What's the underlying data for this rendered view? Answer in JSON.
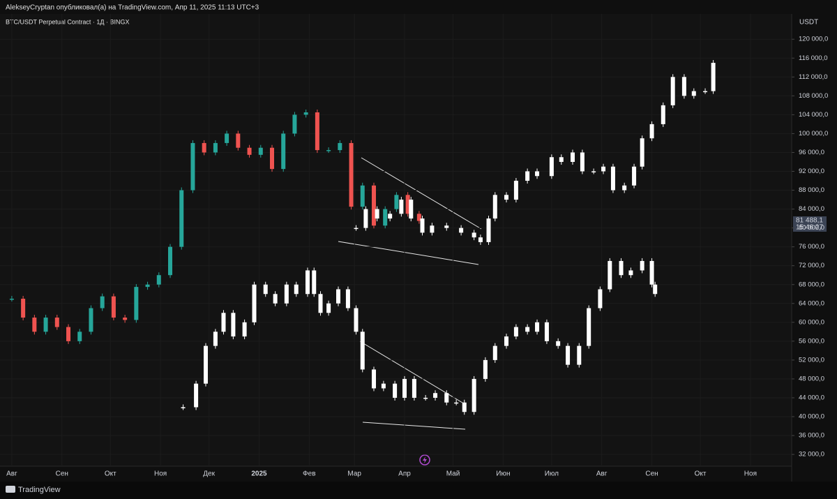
{
  "header": {
    "published": "AlekseyCryptan опубликовал(а) на TradingView.com, Апр 11, 2025 11:13 UTC+3",
    "symbol": "BTC/USDT Perpetual Contract · 1Д · BINGX",
    "currency": "USDT"
  },
  "price_label": {
    "price": "81 488,1",
    "countdown": "15:46:27"
  },
  "footer": {
    "brand": "TradingView"
  },
  "chart_data": {
    "type": "candlestick",
    "xlim": [
      -7.3,
      482.5
    ],
    "xticks": [
      {
        "value": 0,
        "label": "Авг"
      },
      {
        "value": 31,
        "label": "Сен"
      },
      {
        "value": 61,
        "label": "Окт"
      },
      {
        "value": 92,
        "label": "Ноя"
      },
      {
        "value": 122,
        "label": "Дек"
      },
      {
        "value": 153,
        "label": "2025"
      },
      {
        "value": 184,
        "label": "Фев"
      },
      {
        "value": 212,
        "label": "Мар"
      },
      {
        "value": 243,
        "label": "Апр"
      },
      {
        "value": 273,
        "label": "Май"
      },
      {
        "value": 304,
        "label": "Июн"
      },
      {
        "value": 334,
        "label": "Июл"
      },
      {
        "value": 365,
        "label": "Авг"
      },
      {
        "value": 396,
        "label": "Сен"
      },
      {
        "value": 426,
        "label": "Окт"
      },
      {
        "value": 457,
        "label": "Ноя"
      }
    ],
    "ylim": [
      29500,
      122400
    ],
    "yticks": [
      {
        "value": 120000,
        "label": "120 000,0"
      },
      {
        "value": 116000,
        "label": "116 000,0"
      },
      {
        "value": 112000,
        "label": "112 000,0"
      },
      {
        "value": 108000,
        "label": "108 000,0"
      },
      {
        "value": 104000,
        "label": "104 000,0"
      },
      {
        "value": 100000,
        "label": "100 000,0"
      },
      {
        "value": 96000,
        "label": "96 000,0"
      },
      {
        "value": 92000,
        "label": "92 000,0"
      },
      {
        "value": 88000,
        "label": "88 000,0"
      },
      {
        "value": 84000,
        "label": "84 000,0"
      },
      {
        "value": 80000,
        "label": "80 000,0"
      },
      {
        "value": 76000,
        "label": "76 000,0"
      },
      {
        "value": 72000,
        "label": "72 000,0"
      },
      {
        "value": 68000,
        "label": "68 000,0"
      },
      {
        "value": 64000,
        "label": "64 000,0"
      },
      {
        "value": 60000,
        "label": "60 000,0"
      },
      {
        "value": 56000,
        "label": "56 000,0"
      },
      {
        "value": 52000,
        "label": "52 000,0"
      },
      {
        "value": 48000,
        "label": "48 000,0"
      },
      {
        "value": 44000,
        "label": "44 000,0"
      },
      {
        "value": 40000,
        "label": "40 000,0"
      },
      {
        "value": 36000,
        "label": "36 000,0"
      },
      {
        "value": 32000,
        "label": "32 000,0"
      }
    ],
    "series": [
      {
        "up_color": "#26a69a",
        "down_color": "#ef5350",
        "x": [
          0,
          7,
          14,
          21,
          28,
          35,
          42,
          49,
          56,
          63,
          70,
          77,
          84,
          91,
          98,
          105,
          112,
          119,
          126,
          133,
          140,
          147,
          154,
          161,
          168,
          175,
          182,
          189,
          196,
          203,
          210,
          217,
          224,
          231,
          238,
          245,
          252
        ],
        "values": [
          65000,
          61000,
          58000,
          61000,
          59000,
          56000,
          58000,
          63000,
          65500,
          61000,
          60500,
          67500,
          68000,
          70000,
          76000,
          88000,
          98000,
          96000,
          98000,
          100000,
          97000,
          95500,
          97000,
          92500,
          100000,
          104000,
          104500,
          96500,
          96500,
          98000,
          84500,
          89000,
          80500,
          84000,
          87000,
          83000,
          81488
        ]
      },
      {
        "up_color": "#ffffff",
        "down_color": "#ffffff",
        "x": [
          213,
          219,
          226,
          234,
          241,
          247,
          254,
          260,
          269,
          278,
          286,
          290,
          295,
          299,
          306,
          312,
          319,
          325,
          334,
          340,
          347,
          353,
          360,
          366,
          372,
          379,
          385,
          390,
          396,
          403,
          409,
          416,
          422,
          429,
          434
        ],
        "values": [
          80000,
          84000,
          82000,
          83000,
          86000,
          82000,
          79000,
          80500,
          80000,
          79000,
          78000,
          77000,
          82000,
          87000,
          86000,
          90000,
          92000,
          91000,
          95000,
          94000,
          96000,
          92000,
          92000,
          93000,
          88000,
          89000,
          93000,
          99000,
          102000,
          106000,
          112000,
          108000,
          109000,
          109000,
          115000
        ]
      },
      {
        "up_color": "#ffffff",
        "down_color": "#ffffff",
        "x": [
          106,
          114,
          120,
          126,
          131,
          137,
          144,
          150,
          157,
          163,
          170,
          176,
          183,
          187,
          191,
          196,
          202,
          208,
          213,
          217,
          224,
          230,
          237,
          243,
          249,
          256,
          262,
          269,
          275,
          280,
          286,
          293,
          299,
          306,
          312,
          319,
          325,
          331,
          338,
          344,
          351,
          357,
          364,
          370,
          377,
          383,
          390,
          396,
          398
        ],
        "values": [
          42000,
          47000,
          55000,
          58000,
          62000,
          57000,
          60000,
          68000,
          66000,
          64000,
          68000,
          66000,
          71000,
          66000,
          62000,
          64000,
          67000,
          63000,
          58000,
          50000,
          46000,
          47000,
          44000,
          48000,
          44000,
          44000,
          45000,
          43000,
          43000,
          41000,
          48000,
          52000,
          55000,
          57000,
          59000,
          58000,
          60000,
          56000,
          55000,
          51000,
          55000,
          63000,
          67000,
          73000,
          70000,
          71000,
          73000,
          68000,
          66000
        ]
      }
    ]
  }
}
